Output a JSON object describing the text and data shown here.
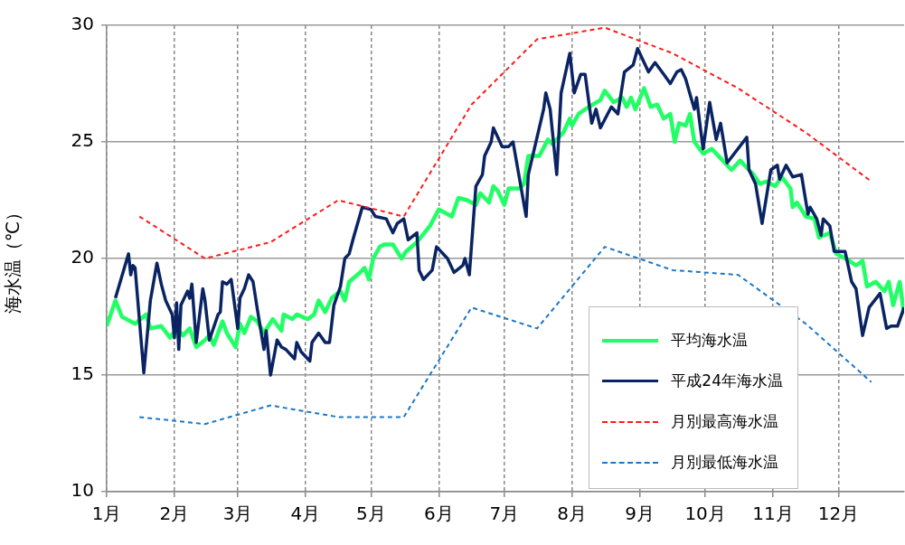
{
  "chart_data": {
    "type": "line",
    "ylabel": "海水温（℃）",
    "xlim": [
      "--01-01",
      "--12-31"
    ],
    "xticks": [
      {
        "value": "--01-01",
        "label": "1月"
      },
      {
        "value": "--02-01",
        "label": "2月"
      },
      {
        "value": "--03-01",
        "label": "3月"
      },
      {
        "value": "--04-01",
        "label": "4月"
      },
      {
        "value": "--05-01",
        "label": "5月"
      },
      {
        "value": "--06-01",
        "label": "6月"
      },
      {
        "value": "--07-01",
        "label": "7月"
      },
      {
        "value": "--08-01",
        "label": "8月"
      },
      {
        "value": "--09-01",
        "label": "9月"
      },
      {
        "value": "--10-01",
        "label": "10月"
      },
      {
        "value": "--11-01",
        "label": "11月"
      },
      {
        "value": "--12-01",
        "label": "12月"
      }
    ],
    "ylim": [
      10,
      30
    ],
    "yticks": [
      10,
      15,
      20,
      25,
      30
    ],
    "grid": true,
    "legend": "bottom right",
    "marker": "none",
    "series": [
      {
        "name": "平均海水温",
        "color": "#22ff66",
        "line_style": "solid",
        "x": [
          "--01-01",
          "--01-05",
          "--01-08",
          "--01-14",
          "--01-19",
          "--01-21",
          "--01-26",
          "--01-30",
          "--02-02",
          "--02-05",
          "--02-08",
          "--02-11",
          "--02-15",
          "--02-17",
          "--02-19",
          "--02-23",
          "--02-25",
          "--02-29",
          "--03-02",
          "--03-04",
          "--03-07",
          "--03-10",
          "--03-13",
          "--03-17",
          "--03-21",
          "--03-22",
          "--03-26",
          "--03-28",
          "--04-02",
          "--04-05",
          "--04-07",
          "--04-10",
          "--04-13",
          "--04-17",
          "--04-19",
          "--04-21",
          "--04-26",
          "--04-28",
          "--04-30",
          "--05-02",
          "--05-05",
          "--05-07",
          "--05-11",
          "--05-15",
          "--05-17",
          "--05-22",
          "--05-28",
          "--06-01",
          "--06-07",
          "--06-10",
          "--06-14",
          "--06-18",
          "--06-20",
          "--06-24",
          "--06-26",
          "--06-28",
          "--07-01",
          "--07-03",
          "--07-08",
          "--07-10",
          "--07-12",
          "--07-17",
          "--07-21",
          "--07-23",
          "--07-28",
          "--07-31",
          "--08-01",
          "--08-04",
          "--08-07",
          "--08-14",
          "--08-16",
          "--08-20",
          "--08-24",
          "--08-26",
          "--08-28",
          "--08-30",
          "--09-03",
          "--09-06",
          "--09-09",
          "--09-12",
          "--09-15",
          "--09-17",
          "--09-19",
          "--09-22",
          "--09-24",
          "--09-26",
          "--09-30",
          "--10-04",
          "--10-06",
          "--10-09",
          "--10-13",
          "--10-17",
          "--10-21",
          "--10-23",
          "--10-26",
          "--10-29",
          "--11-02",
          "--11-05",
          "--11-09",
          "--11-10",
          "--11-12",
          "--11-16",
          "--11-20",
          "--11-22",
          "--11-27",
          "--11-30",
          "--12-06",
          "--12-09",
          "--12-12",
          "--12-14",
          "--12-18",
          "--12-22",
          "--12-24",
          "--12-26",
          "--12-29",
          "--12-31"
        ],
        "values": [
          17.1,
          18.2,
          17.5,
          17.2,
          17.6,
          17.0,
          17.1,
          16.6,
          17.0,
          16.7,
          17.0,
          16.2,
          16.5,
          16.7,
          16.3,
          17.3,
          16.8,
          16.2,
          17.2,
          16.8,
          17.5,
          17.3,
          16.8,
          17.4,
          16.9,
          17.6,
          17.4,
          17.6,
          17.4,
          17.6,
          18.2,
          17.7,
          18.3,
          18.6,
          18.2,
          19.0,
          19.4,
          19.6,
          19.1,
          20.0,
          20.5,
          20.6,
          20.6,
          20.0,
          20.3,
          20.7,
          21.4,
          22.1,
          21.8,
          22.6,
          22.5,
          22.3,
          22.8,
          22.4,
          23.1,
          22.9,
          22.3,
          23.0,
          23.0,
          23.2,
          24.4,
          24.4,
          25.1,
          24.9,
          25.4,
          26.0,
          25.7,
          26.2,
          26.4,
          26.8,
          27.2,
          26.7,
          26.9,
          26.5,
          26.9,
          26.4,
          27.3,
          26.5,
          26.6,
          26.0,
          26.2,
          25.0,
          25.8,
          25.7,
          26.2,
          25.0,
          24.5,
          24.7,
          24.5,
          24.2,
          23.8,
          24.2,
          23.8,
          23.6,
          23.2,
          23.3,
          23.1,
          23.5,
          23.0,
          22.2,
          22.4,
          21.8,
          21.7,
          20.9,
          21.1,
          20.2,
          19.9,
          19.7,
          19.9,
          18.8,
          19.0,
          18.6,
          19.0,
          18.0,
          19.0,
          17.6
        ]
      },
      {
        "name": "平成24年海水温",
        "color": "#0a2463",
        "line_style": "solid",
        "x": [
          "--01-05",
          "--01-11",
          "--01-12",
          "--01-13",
          "--01-14",
          "--01-18",
          "--01-21",
          "--01-24",
          "--01-26",
          "--01-28",
          "--01-31",
          "--02-01",
          "--02-02",
          "--02-03",
          "--02-04",
          "--02-07",
          "--02-08",
          "--02-09",
          "--02-11",
          "--02-14",
          "--02-15",
          "--02-17",
          "--02-21",
          "--02-22",
          "--02-23",
          "--02-25",
          "--02-27",
          "--03-01",
          "--03-02",
          "--03-04",
          "--03-06",
          "--03-08",
          "--03-10",
          "--03-13",
          "--03-14",
          "--03-16",
          "--03-19",
          "--03-21",
          "--03-23",
          "--03-27",
          "--03-28",
          "--03-30",
          "--04-03",
          "--04-04",
          "--04-07",
          "--04-10",
          "--04-12",
          "--04-14",
          "--04-17",
          "--04-19",
          "--04-21",
          "--04-23",
          "--04-27",
          "--05-01",
          "--05-03",
          "--05-08",
          "--05-11",
          "--05-13",
          "--05-16",
          "--05-18",
          "--05-22",
          "--05-23",
          "--05-25",
          "--05-29",
          "--05-31",
          "--06-05",
          "--06-08",
          "--06-12",
          "--06-13",
          "--06-15",
          "--06-18",
          "--06-21",
          "--06-22",
          "--06-25",
          "--06-26",
          "--06-28",
          "--06-30",
          "--07-03",
          "--07-05",
          "--07-11",
          "--07-12",
          "--07-19",
          "--07-20",
          "--07-22",
          "--07-25",
          "--07-27",
          "--07-31",
          "--08-02",
          "--08-05",
          "--08-07",
          "--08-10",
          "--08-12",
          "--08-14",
          "--08-19",
          "--08-22",
          "--08-25",
          "--08-29",
          "--08-31",
          "--09-05",
          "--09-08",
          "--09-12",
          "--09-15",
          "--09-18",
          "--09-20",
          "--09-22",
          "--09-26",
          "--09-27",
          "--09-30",
          "--10-03",
          "--10-06",
          "--10-08",
          "--10-11",
          "--10-20",
          "--10-21",
          "--10-24",
          "--10-27",
          "--10-31",
          "--11-03",
          "--11-04",
          "--11-07",
          "--11-10",
          "--11-14",
          "--11-17",
          "--11-18",
          "--11-21",
          "--11-23",
          "--11-24",
          "--11-27",
          "--11-29",
          "--12-04",
          "--12-07",
          "--12-09",
          "--12-12",
          "--12-15",
          "--12-20",
          "--12-23",
          "--12-25",
          "--12-28",
          "--12-31"
        ],
        "values": [
          18.3,
          20.2,
          19.3,
          19.7,
          19.6,
          15.1,
          18.2,
          19.8,
          18.9,
          18.2,
          17.6,
          16.6,
          18.1,
          16.1,
          18.0,
          18.6,
          18.3,
          18.9,
          16.4,
          18.7,
          18.2,
          16.5,
          17.6,
          17.7,
          19.0,
          18.9,
          19.1,
          17.0,
          18.3,
          18.7,
          19.3,
          19.0,
          17.8,
          16.1,
          16.9,
          15.0,
          16.5,
          16.2,
          16.1,
          15.7,
          16.4,
          16.0,
          15.6,
          16.4,
          16.8,
          16.4,
          16.4,
          18.0,
          18.8,
          20.0,
          20.2,
          20.9,
          22.2,
          22.1,
          21.8,
          21.7,
          21.1,
          21.5,
          21.7,
          20.8,
          21.1,
          19.5,
          19.1,
          19.5,
          20.5,
          20.0,
          19.4,
          19.7,
          20.0,
          19.3,
          23.1,
          23.6,
          24.4,
          25.0,
          25.6,
          25.2,
          24.8,
          24.8,
          25.0,
          21.8,
          23.6,
          26.4,
          27.1,
          26.4,
          23.6,
          27.1,
          28.8,
          27.1,
          27.9,
          27.9,
          25.8,
          26.4,
          25.6,
          26.5,
          26.2,
          28.0,
          28.3,
          29.0,
          28.0,
          28.4,
          27.9,
          27.5,
          28.0,
          28.1,
          27.7,
          26.4,
          26.9,
          24.7,
          26.7,
          25.1,
          25.8,
          24.1,
          25.2,
          23.8,
          23.2,
          21.5,
          23.8,
          24.0,
          23.4,
          24.0,
          23.5,
          23.6,
          21.9,
          22.2,
          21.7,
          21.0,
          21.7,
          21.4,
          20.3,
          20.3,
          19.0,
          18.7,
          16.7,
          17.9,
          18.5,
          17.0,
          17.1,
          17.1,
          17.9
        ]
      },
      {
        "name": "月別最高海水温",
        "color": "#ff1a1a",
        "line_style": "dashed",
        "x": [
          "--01-16",
          "--02-15",
          "--03-16",
          "--04-16",
          "--05-16",
          "--06-16",
          "--07-16",
          "--08-16",
          "--09-16",
          "--10-16",
          "--11-16",
          "--12-16"
        ],
        "values": [
          21.8,
          20.0,
          20.7,
          22.5,
          21.8,
          26.6,
          29.4,
          29.9,
          28.8,
          27.3,
          25.4,
          23.3
        ]
      },
      {
        "name": "月別最低海水温",
        "color": "#1a78c8",
        "line_style": "dashed",
        "x": [
          "--01-16",
          "--02-15",
          "--03-16",
          "--04-16",
          "--05-16",
          "--06-16",
          "--07-16",
          "--08-16",
          "--09-16",
          "--10-16",
          "--11-16",
          "--12-16"
        ],
        "values": [
          13.2,
          12.9,
          13.7,
          13.2,
          13.2,
          17.9,
          17.0,
          20.5,
          19.5,
          19.3,
          17.2,
          14.7
        ]
      }
    ]
  }
}
